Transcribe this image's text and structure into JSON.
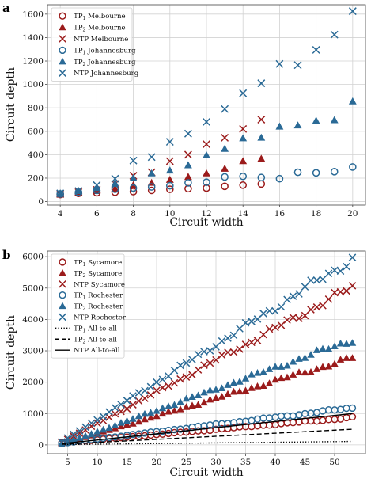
{
  "colors": {
    "red": "#9b1b1b",
    "blue": "#2a6a96",
    "grid": "#d2d2d2",
    "axis": "#444444"
  },
  "chart_data": [
    {
      "type": "scatter",
      "panel_label": "a",
      "xlabel": "Circuit width",
      "ylabel": "Circuit depth",
      "xlim": [
        3.3,
        20.7
      ],
      "ylim": [
        -30,
        1680
      ],
      "xticks": [
        4,
        6,
        8,
        10,
        12,
        14,
        16,
        18,
        20
      ],
      "yticks": [
        0,
        200,
        400,
        600,
        800,
        1000,
        1200,
        1400,
        1600
      ],
      "grid": true,
      "legend_position": "top-left",
      "series": [
        {
          "name": "TP1 Melbourne",
          "legend_main": "TP",
          "legend_sub": "1",
          "legend_rest": " Melbourne",
          "marker": "circle",
          "color": "red",
          "x": [
            4,
            5,
            6,
            7,
            8,
            9,
            10,
            11,
            12,
            13,
            14,
            15
          ],
          "y": [
            60,
            70,
            75,
            80,
            85,
            95,
            105,
            110,
            115,
            130,
            140,
            150
          ]
        },
        {
          "name": "TP2 Melbourne",
          "legend_main": "TP",
          "legend_sub": "2",
          "legend_rest": " Melbourne",
          "marker": "triangle",
          "color": "red",
          "x": [
            4,
            5,
            6,
            7,
            8,
            9,
            10,
            11,
            12,
            13,
            14,
            15
          ],
          "y": [
            60,
            75,
            90,
            110,
            140,
            160,
            185,
            210,
            240,
            280,
            345,
            365
          ]
        },
        {
          "name": "NTP Melbourne",
          "legend_main": "NTP",
          "legend_sub": "",
          "legend_rest": " Melbourne",
          "marker": "x",
          "color": "red",
          "x": [
            4,
            5,
            6,
            7,
            8,
            9,
            10,
            11,
            12,
            13,
            14,
            15
          ],
          "y": [
            65,
            80,
            100,
            150,
            220,
            250,
            345,
            400,
            490,
            545,
            620,
            700
          ]
        },
        {
          "name": "TP1 Johannesburg",
          "legend_main": "TP",
          "legend_sub": "1",
          "legend_rest": " Johannesburg",
          "marker": "circle",
          "color": "blue",
          "x": [
            4,
            5,
            6,
            7,
            8,
            9,
            10,
            11,
            12,
            13,
            14,
            15,
            16,
            17,
            18,
            19,
            20
          ],
          "y": [
            65,
            80,
            95,
            105,
            115,
            125,
            135,
            160,
            165,
            210,
            215,
            205,
            195,
            250,
            245,
            255,
            295
          ]
        },
        {
          "name": "TP2 Johannesburg",
          "legend_main": "TP",
          "legend_sub": "2",
          "legend_rest": " Johannesburg",
          "marker": "triangle",
          "color": "blue",
          "x": [
            4,
            5,
            6,
            7,
            8,
            9,
            10,
            11,
            12,
            13,
            14,
            15,
            16,
            17,
            18,
            19,
            20
          ],
          "y": [
            70,
            90,
            115,
            155,
            200,
            240,
            265,
            310,
            395,
            450,
            540,
            545,
            640,
            650,
            690,
            695,
            855
          ]
        },
        {
          "name": "NTP Johannesburg",
          "legend_main": "NTP",
          "legend_sub": "",
          "legend_rest": " Johannesburg",
          "marker": "x",
          "color": "blue",
          "x": [
            4,
            5,
            6,
            7,
            8,
            9,
            10,
            11,
            12,
            13,
            14,
            15,
            16,
            17,
            18,
            19,
            20
          ],
          "y": [
            70,
            90,
            140,
            195,
            350,
            380,
            510,
            580,
            680,
            790,
            925,
            1010,
            1175,
            1165,
            1295,
            1425,
            1625
          ]
        }
      ]
    },
    {
      "type": "scatter",
      "panel_label": "b",
      "xlabel": "Circuit width",
      "ylabel": "Circuit depth",
      "xlim": [
        1.6,
        55.2
      ],
      "ylim": [
        -280,
        6180
      ],
      "xticks": [
        5,
        10,
        15,
        20,
        25,
        30,
        35,
        40,
        45,
        50
      ],
      "yticks": [
        0,
        1000,
        2000,
        3000,
        4000,
        5000,
        6000
      ],
      "grid": true,
      "legend_position": "top-left",
      "series": [
        {
          "name": "TP1 Sycamore",
          "legend_main": "TP",
          "legend_sub": "1",
          "legend_rest": " Sycamore",
          "marker": "circle",
          "color": "red",
          "x_range": [
            4,
            53
          ],
          "y_linear": [
            0,
            16.5
          ]
        },
        {
          "name": "TP2 Sycamore",
          "legend_main": "TP",
          "legend_sub": "2",
          "legend_rest": " Sycamore",
          "marker": "triangle",
          "color": "red",
          "x_range": [
            4,
            53
          ],
          "y_linear": [
            -200,
            56
          ]
        },
        {
          "name": "NTP Sycamore",
          "legend_main": "NTP",
          "legend_sub": "",
          "legend_rest": " Sycamore",
          "marker": "x",
          "color": "red",
          "x_range": [
            4,
            53
          ],
          "y_linear": [
            -330,
            101
          ]
        },
        {
          "name": "TP1 Rochester",
          "legend_main": "TP",
          "legend_sub": "1",
          "legend_rest": " Rochester",
          "marker": "circle",
          "color": "blue",
          "x_range": [
            4,
            53
          ],
          "y_linear": [
            -40,
            23
          ]
        },
        {
          "name": "TP2 Rochester",
          "legend_main": "TP",
          "legend_sub": "2",
          "legend_rest": " Rochester",
          "marker": "triangle",
          "color": "blue",
          "x_range": [
            4,
            53
          ],
          "y_linear": [
            -260,
            68
          ]
        },
        {
          "name": "NTP Rochester",
          "legend_main": "NTP",
          "legend_sub": "",
          "legend_rest": " Rochester",
          "marker": "x",
          "color": "blue",
          "x_range": [
            4,
            53
          ],
          "y_linear": [
            -380,
            119
          ]
        },
        {
          "name": "TP1 All-to-all",
          "legend_main": "TP",
          "legend_sub": "1",
          "legend_rest": " All-to-all",
          "marker": "line",
          "dash": "dotted",
          "color": "black",
          "x": [
            4,
            53
          ],
          "y": [
            10,
            110
          ]
        },
        {
          "name": "TP2 All-to-all",
          "legend_main": "TP",
          "legend_sub": "2",
          "legend_rest": " All-to-all",
          "marker": "line",
          "dash": "dashed",
          "color": "black",
          "x": [
            4,
            53
          ],
          "y": [
            20,
            500
          ]
        },
        {
          "name": "NTP All-to-all",
          "legend_main": "NTP",
          "legend_sub": "",
          "legend_rest": " All-to-all",
          "marker": "line",
          "dash": "solid",
          "color": "black",
          "x": [
            4,
            53
          ],
          "y": [
            40,
            1000
          ]
        }
      ]
    }
  ]
}
